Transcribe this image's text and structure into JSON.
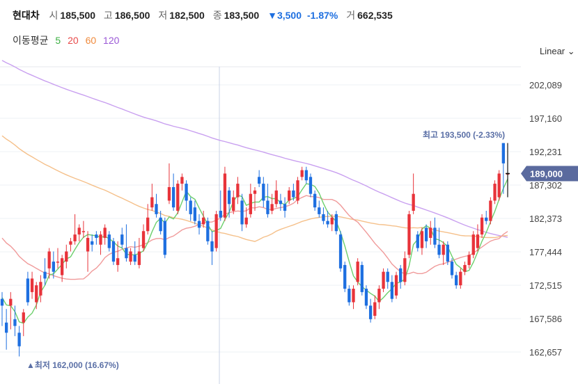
{
  "header": {
    "name": "현대차",
    "open_label": "시",
    "open": "185,500",
    "high_label": "고",
    "high": "186,500",
    "low_label": "저",
    "low": "182,500",
    "close_label": "종",
    "close": "183,500",
    "change": "▼3,500",
    "change_pct": "-1.87%",
    "volume_label": "거",
    "volume": "662,535"
  },
  "ma_legend": {
    "title": "이동평균",
    "periods": [
      {
        "label": "5",
        "color": "#3cb043"
      },
      {
        "label": "20",
        "color": "#e84a4a"
      },
      {
        "label": "60",
        "color": "#f08a3c"
      },
      {
        "label": "120",
        "color": "#9b59d6"
      }
    ]
  },
  "scale_mode": "Linear",
  "colors": {
    "up": "#e8333a",
    "down": "#1e6fe0",
    "ma5": "#6ccf6c",
    "ma20": "#f09a9a",
    "ma60": "#f5c08a",
    "ma120": "#c9a0f0"
  },
  "chart_data": {
    "type": "candlestick",
    "y_ticks": [
      "202,089",
      "197,160",
      "192,231",
      "187,302",
      "182,373",
      "177,444",
      "172,515",
      "167,586",
      "162,657"
    ],
    "y_tick_values": [
      202089,
      197160,
      192231,
      187302,
      182373,
      177444,
      172515,
      167586,
      162657
    ],
    "ylim": [
      161000,
      205000
    ],
    "high_annotation": "최고 193,500 (-2.33%)",
    "low_annotation": "▲최저 162,000 (16.67%)",
    "current_price": "189,000",
    "candles": [
      [
        170500,
        169500,
        171500,
        166500
      ],
      [
        167000,
        165500,
        169000,
        163000
      ],
      [
        169500,
        170500,
        171500,
        166000
      ],
      [
        167500,
        166500,
        169500,
        165000
      ],
      [
        165500,
        163500,
        166500,
        162000
      ],
      [
        167000,
        168500,
        169000,
        165000
      ],
      [
        173500,
        170000,
        174500,
        169500
      ],
      [
        171500,
        173500,
        174500,
        170500
      ],
      [
        170000,
        172500,
        173000,
        169000
      ],
      [
        171000,
        173000,
        174000,
        170000
      ],
      [
        174500,
        173500,
        176500,
        172500
      ],
      [
        175000,
        177500,
        178000,
        173500
      ],
      [
        176000,
        174500,
        177500,
        173500
      ],
      [
        176000,
        176000,
        178000,
        175000
      ],
      [
        174000,
        176500,
        177000,
        173000
      ],
      [
        176000,
        177500,
        178500,
        175000
      ],
      [
        178500,
        179000,
        179500,
        177500
      ],
      [
        179000,
        180000,
        183000,
        178500
      ],
      [
        180000,
        181000,
        181500,
        179000
      ],
      [
        180500,
        180500,
        182000,
        179500
      ],
      [
        177500,
        179500,
        180500,
        174500
      ],
      [
        179000,
        178500,
        180000,
        177500
      ],
      [
        180000,
        179500,
        180500,
        178500
      ],
      [
        178500,
        180000,
        180500,
        177000
      ],
      [
        179500,
        181000,
        181500,
        178500
      ],
      [
        180000,
        178000,
        180500,
        177500
      ],
      [
        179000,
        176000,
        179500,
        175500
      ],
      [
        175500,
        176500,
        179000,
        174500
      ],
      [
        180000,
        178500,
        181000,
        178000
      ],
      [
        178000,
        176500,
        181500,
        176000
      ],
      [
        176000,
        177500,
        178000,
        175500
      ],
      [
        177000,
        176000,
        179000,
        175500
      ],
      [
        175500,
        177500,
        179500,
        175000
      ],
      [
        178000,
        180500,
        181500,
        177500
      ],
      [
        180500,
        182500,
        184500,
        180000
      ],
      [
        184000,
        185500,
        187500,
        183500
      ],
      [
        184500,
        183000,
        186000,
        182500
      ],
      [
        182500,
        180500,
        183500,
        180000
      ],
      [
        182000,
        177000,
        182500,
        176500
      ],
      [
        185000,
        187000,
        190500,
        184500
      ],
      [
        187000,
        184000,
        189000,
        183500
      ],
      [
        183500,
        187500,
        188000,
        183000
      ],
      [
        187500,
        188500,
        189000,
        186500
      ],
      [
        187500,
        185000,
        188000,
        183500
      ],
      [
        185000,
        183000,
        185500,
        182000
      ],
      [
        184000,
        182000,
        185000,
        181500
      ],
      [
        182000,
        181000,
        183000,
        180000
      ],
      [
        181500,
        182500,
        183500,
        181000
      ],
      [
        182000,
        179000,
        182500,
        178500
      ],
      [
        179000,
        177500,
        180500,
        175500
      ],
      [
        178000,
        183000,
        183500,
        177500
      ],
      [
        183500,
        182500,
        186500,
        182000
      ],
      [
        182500,
        189000,
        190000,
        182000
      ],
      [
        186500,
        184500,
        187000,
        182500
      ],
      [
        183500,
        185500,
        186500,
        183000
      ],
      [
        185500,
        187500,
        188500,
        184500
      ],
      [
        185000,
        181500,
        186000,
        180500
      ],
      [
        181500,
        182500,
        184000,
        181000
      ],
      [
        183000,
        186000,
        187500,
        182500
      ],
      [
        186000,
        186500,
        187000,
        183500
      ],
      [
        188500,
        187500,
        189500,
        187000
      ],
      [
        187500,
        185000,
        188500,
        184000
      ],
      [
        185000,
        183000,
        187500,
        182500
      ],
      [
        183500,
        184500,
        186000,
        183000
      ],
      [
        184500,
        186500,
        188000,
        184000
      ],
      [
        185000,
        184500,
        186000,
        183500
      ],
      [
        184500,
        183500,
        185500,
        182500
      ],
      [
        185000,
        186500,
        187000,
        184500
      ],
      [
        186500,
        185500,
        187500,
        185000
      ],
      [
        185000,
        188000,
        188500,
        184500
      ],
      [
        188500,
        189500,
        190000,
        188000
      ],
      [
        189500,
        188000,
        190000,
        187500
      ],
      [
        188500,
        186000,
        189000,
        185500
      ],
      [
        186000,
        184000,
        186500,
        183500
      ],
      [
        184000,
        183000,
        185000,
        182500
      ],
      [
        183000,
        182000,
        184000,
        181500
      ],
      [
        182000,
        181500,
        183500,
        181000
      ],
      [
        181500,
        182500,
        183000,
        180500
      ],
      [
        183000,
        180500,
        183500,
        180000
      ],
      [
        180000,
        175000,
        180500,
        174500
      ],
      [
        175500,
        172000,
        176000,
        171500
      ],
      [
        172000,
        170000,
        172500,
        169500
      ],
      [
        170000,
        172000,
        172500,
        169000
      ],
      [
        173000,
        176000,
        176500,
        172500
      ],
      [
        175500,
        171500,
        176000,
        171000
      ],
      [
        172000,
        169500,
        172500,
        169000
      ],
      [
        169500,
        167500,
        170500,
        167000
      ],
      [
        168000,
        170000,
        171000,
        167500
      ],
      [
        170000,
        172000,
        172500,
        169000
      ],
      [
        172000,
        174500,
        175000,
        171500
      ],
      [
        174500,
        173000,
        175000,
        172000
      ],
      [
        173000,
        170500,
        174000,
        170000
      ],
      [
        171000,
        174000,
        174500,
        170500
      ],
      [
        175000,
        173000,
        175500,
        172000
      ],
      [
        173000,
        176500,
        177500,
        172500
      ],
      [
        177000,
        183000,
        183500,
        176500
      ],
      [
        183500,
        186000,
        189000,
        183000
      ],
      [
        180000,
        178000,
        180500,
        177500
      ],
      [
        178000,
        180500,
        181000,
        177000
      ],
      [
        181000,
        179000,
        181500,
        178000
      ],
      [
        179500,
        181000,
        182000,
        178500
      ],
      [
        181000,
        178500,
        182500,
        178000
      ],
      [
        178500,
        177000,
        181000,
        176500
      ],
      [
        177000,
        178500,
        179000,
        175500
      ],
      [
        178500,
        176000,
        179000,
        175500
      ],
      [
        176000,
        174000,
        176500,
        173500
      ],
      [
        174000,
        172500,
        174500,
        172000
      ],
      [
        172500,
        174500,
        175000,
        172000
      ],
      [
        174500,
        175500,
        176000,
        174000
      ],
      [
        175500,
        177000,
        177500,
        175000
      ],
      [
        177000,
        180000,
        180500,
        176500
      ],
      [
        178000,
        180000,
        181500,
        177500
      ],
      [
        180000,
        182500,
        183000,
        179500
      ],
      [
        182500,
        182000,
        183500,
        181500
      ],
      [
        182000,
        185000,
        185500,
        181500
      ],
      [
        185000,
        187500,
        188000,
        184500
      ],
      [
        185500,
        189000,
        189500,
        185000
      ],
      [
        193500,
        190500,
        193500,
        186000
      ],
      [
        189000,
        189000,
        193500,
        186000
      ]
    ]
  }
}
